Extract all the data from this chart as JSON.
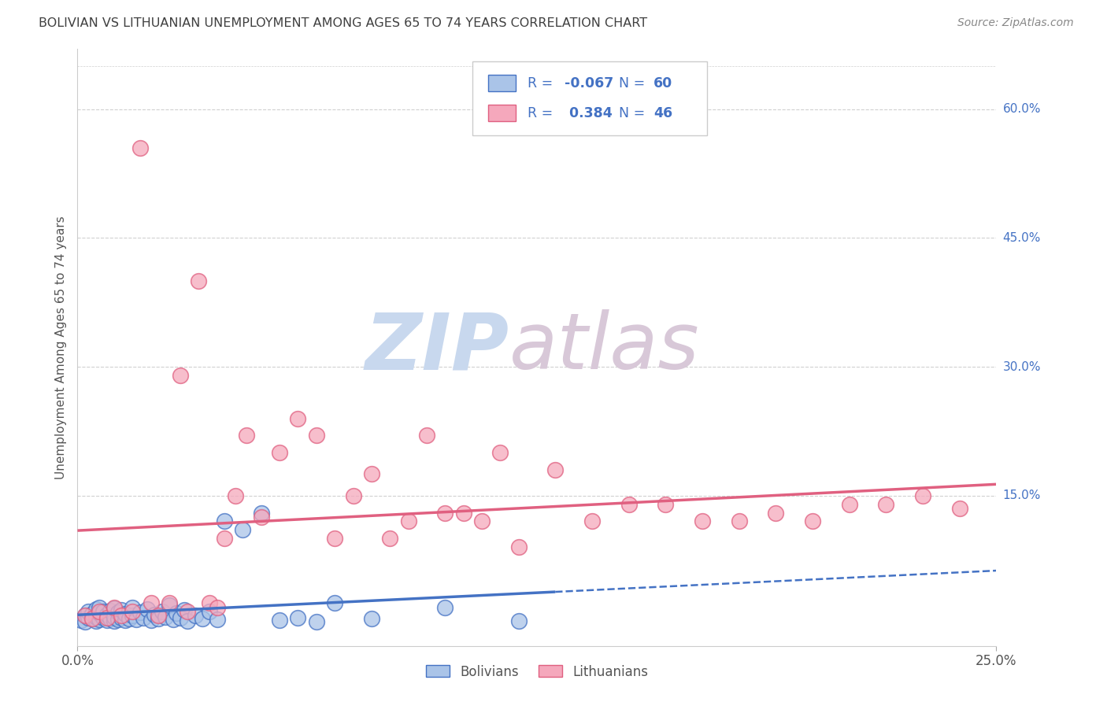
{
  "title": "BOLIVIAN VS LITHUANIAN UNEMPLOYMENT AMONG AGES 65 TO 74 YEARS CORRELATION CHART",
  "source": "Source: ZipAtlas.com",
  "ylabel": "Unemployment Among Ages 65 to 74 years",
  "right_yticks": [
    "60.0%",
    "45.0%",
    "30.0%",
    "15.0%"
  ],
  "right_ytick_vals": [
    0.6,
    0.45,
    0.3,
    0.15
  ],
  "xlim": [
    0.0,
    0.25
  ],
  "ylim": [
    -0.025,
    0.67
  ],
  "legend_r_bolivian": "-0.067",
  "legend_n_bolivian": "60",
  "legend_r_lithuanian": "0.384",
  "legend_n_lithuanian": "46",
  "color_bolivian": "#aac4e8",
  "color_lithuanian": "#f5a8bc",
  "line_color_bolivian": "#4472c4",
  "line_color_lithuanian": "#e06080",
  "watermark_zip": "ZIP",
  "watermark_atlas": "atlas",
  "background_color": "#ffffff",
  "grid_color": "#d0d0d0",
  "title_color": "#404040",
  "source_color": "#888888",
  "blue_label_color": "#4472c4",
  "solid_line_end_bolivian": 0.13,
  "xtick_labels": [
    "0.0%",
    "25.0%"
  ],
  "xtick_positions": [
    0.0,
    0.25
  ]
}
